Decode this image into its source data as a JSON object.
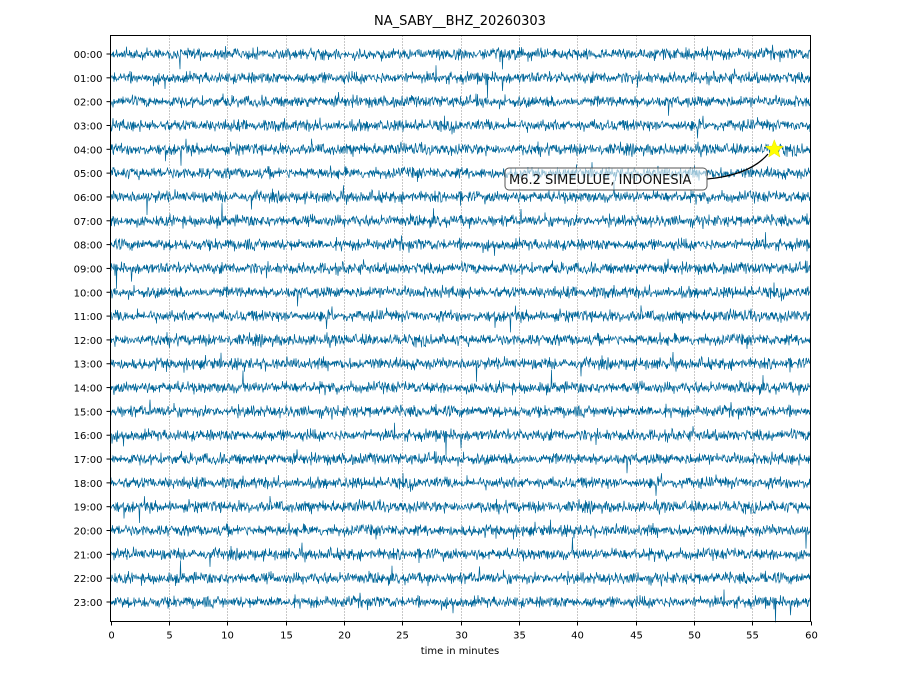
{
  "chart_data": {
    "type": "line",
    "title": "NA_SABY__BHZ_20260303",
    "xlabel": "time in minutes",
    "ylabel": "",
    "xlim": [
      0,
      60
    ],
    "x_ticks": [
      0,
      5,
      10,
      15,
      20,
      25,
      30,
      35,
      40,
      45,
      50,
      55,
      60
    ],
    "x_tick_labels": [
      "0",
      "5",
      "10",
      "15",
      "20",
      "25",
      "30",
      "35",
      "40",
      "45",
      "50",
      "55",
      "60"
    ],
    "y_tick_labels": [
      "00:00",
      "01:00",
      "02:00",
      "03:00",
      "04:00",
      "05:00",
      "06:00",
      "07:00",
      "08:00",
      "09:00",
      "10:00",
      "11:00",
      "12:00",
      "13:00",
      "14:00",
      "15:00",
      "16:00",
      "17:00",
      "18:00",
      "19:00",
      "20:00",
      "21:00",
      "22:00",
      "23:00"
    ],
    "grid": "vertical dotted every 5 minutes",
    "series_color": "#006699",
    "series": "continuous seismic noise trace, one line per hour",
    "annotation": {
      "text": "M6.2 SIMEULUE, INDONESIA",
      "row": "04:00",
      "minute": 56.9,
      "marker": "star",
      "marker_color": "#ffff00"
    }
  }
}
